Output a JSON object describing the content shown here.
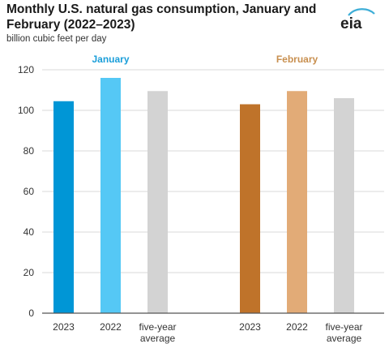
{
  "chart_data": {
    "type": "bar",
    "title": "Monthly U.S. natural gas consumption, January and February (2022–2023)",
    "ylabel": "billion cubic feet per day",
    "xlabel": "",
    "ylim": [
      0,
      120
    ],
    "yticks": [
      0,
      20,
      40,
      60,
      80,
      100,
      120
    ],
    "grid": true,
    "groups": [
      {
        "label": "January",
        "label_color": "#1a9ed9",
        "bars": [
          {
            "category": "2023",
            "value": 104.5,
            "color": "#0096d6"
          },
          {
            "category": "2022",
            "value": 116,
            "color": "#55c8f5"
          },
          {
            "category": "five-year average",
            "value": 109.5,
            "color": "#d3d3d3"
          }
        ]
      },
      {
        "label": "February",
        "label_color": "#c88f4f",
        "bars": [
          {
            "category": "2023",
            "value": 103,
            "color": "#bf732a"
          },
          {
            "category": "2022",
            "value": 109.5,
            "color": "#e2ab77"
          },
          {
            "category": "five-year average",
            "value": 106,
            "color": "#d3d3d3"
          }
        ]
      }
    ]
  },
  "logo": {
    "text": "eia",
    "color": "#1f1f1f",
    "accent": "#3eaed7"
  }
}
